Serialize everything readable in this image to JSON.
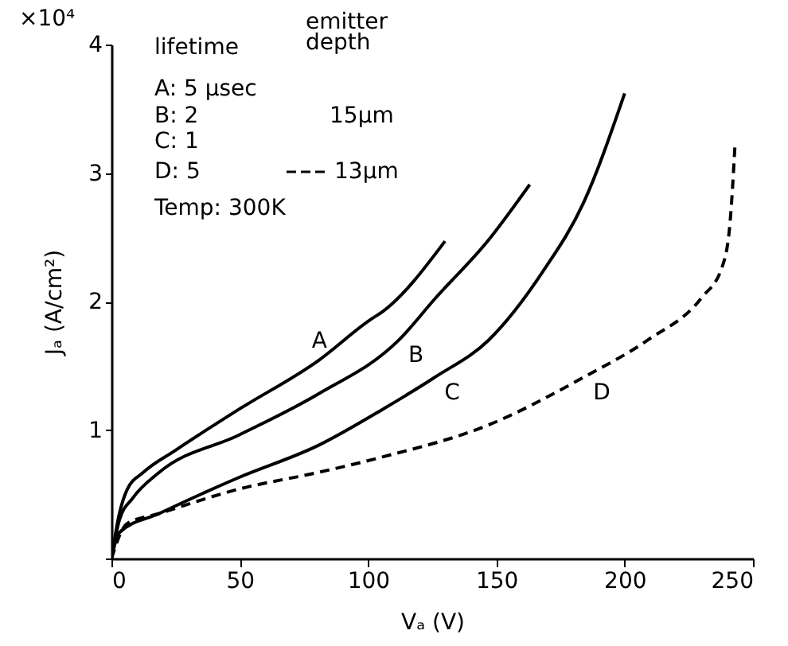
{
  "chart_data": {
    "type": "line",
    "xlabel": "Vₐ (V)",
    "ylabel": "Jₐ (A/cm²)",
    "xlim": [
      0,
      250
    ],
    "xticks": [
      0,
      50,
      100,
      150,
      200,
      250
    ],
    "ylim": [
      0,
      4
    ],
    "yticks": [
      {
        "value": 0,
        "label": null
      },
      1,
      2,
      3,
      4
    ],
    "grid": false,
    "marker": "none",
    "annotations": [
      "×10⁴",
      "lifetime",
      "emitter depth",
      "A: 5 µsec",
      "B: 2",
      "C: 1",
      "D: 5",
      "15µm",
      "13µm",
      "Temp: 300K"
    ],
    "series": [
      {
        "name": "A",
        "color": "#000000",
        "line_style": "solid",
        "x": [
          0,
          3.1,
          6.2,
          12.4,
          24.8,
          49.6,
          80.6,
          101,
          105.6,
          130
        ],
        "values": [
          0,
          0.35,
          0.54,
          0.67,
          0.84,
          1.16,
          1.54,
          1.86,
          1.92,
          2.47
        ]
      },
      {
        "name": "B",
        "color": "#000000",
        "line_style": "solid",
        "x": [
          0,
          3.1,
          8.3,
          18.6,
          49.6,
          80.6,
          112,
          126,
          147,
          163
        ],
        "values": [
          0,
          0.3,
          0.47,
          0.67,
          0.96,
          1.28,
          1.7,
          2.02,
          2.48,
          2.91
        ]
      },
      {
        "name": "C",
        "color": "#000000",
        "line_style": "solid",
        "x": [
          0,
          3,
          18.6,
          49.6,
          80.6,
          105.6,
          126,
          147,
          168,
          184,
          200
        ],
        "values": [
          0,
          0.2,
          0.35,
          0.63,
          0.88,
          1.16,
          1.41,
          1.7,
          2.23,
          2.77,
          3.62
        ]
      },
      {
        "name": "D",
        "color": "#000000",
        "line_style": "dashed",
        "x": [
          0,
          6,
          18.6,
          49.6,
          80.6,
          105.6,
          147,
          184,
          209,
          230,
          238,
          241,
          243
        ],
        "values": [
          0,
          0.27,
          0.35,
          0.54,
          0.67,
          0.79,
          1.04,
          1.41,
          1.7,
          2.03,
          2.27,
          2.6,
          3.22
        ]
      }
    ]
  }
}
